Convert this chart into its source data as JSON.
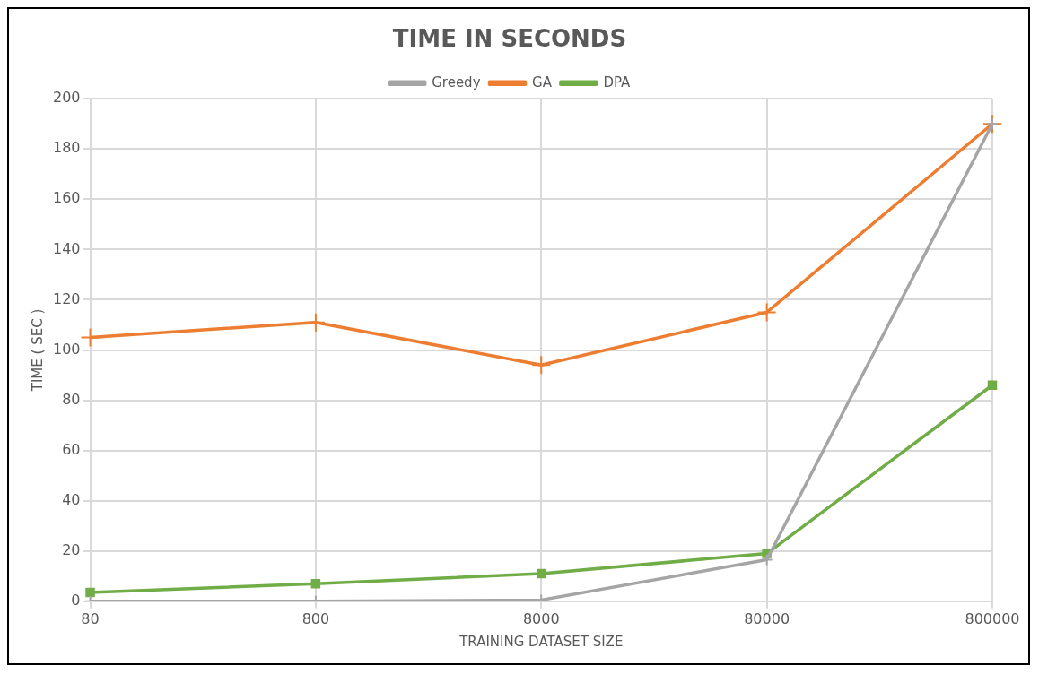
{
  "chart_data": {
    "type": "line",
    "title": "TIME IN SECONDS",
    "xlabel": "TRAINING DATASET SIZE",
    "ylabel": "TIME ( SEC )",
    "categories": [
      "80",
      "800",
      "8000",
      "80000",
      "800000"
    ],
    "series": [
      {
        "name": "Greedy",
        "color": "#a5a5a5",
        "marker": "cross",
        "values": [
          0,
          0,
          0.5,
          16.5,
          190
        ]
      },
      {
        "name": "GA",
        "color": "#ed7d31",
        "marker": "cross",
        "values": [
          105,
          111,
          94,
          115,
          190
        ]
      },
      {
        "name": "DPA",
        "color": "#70ad47",
        "marker": "square",
        "values": [
          3.5,
          7,
          11,
          19,
          86
        ]
      }
    ],
    "ylim": [
      0,
      200
    ],
    "yticks": [
      0,
      20,
      40,
      60,
      80,
      100,
      120,
      140,
      160,
      180,
      200
    ],
    "grid": true,
    "legend": "top"
  }
}
